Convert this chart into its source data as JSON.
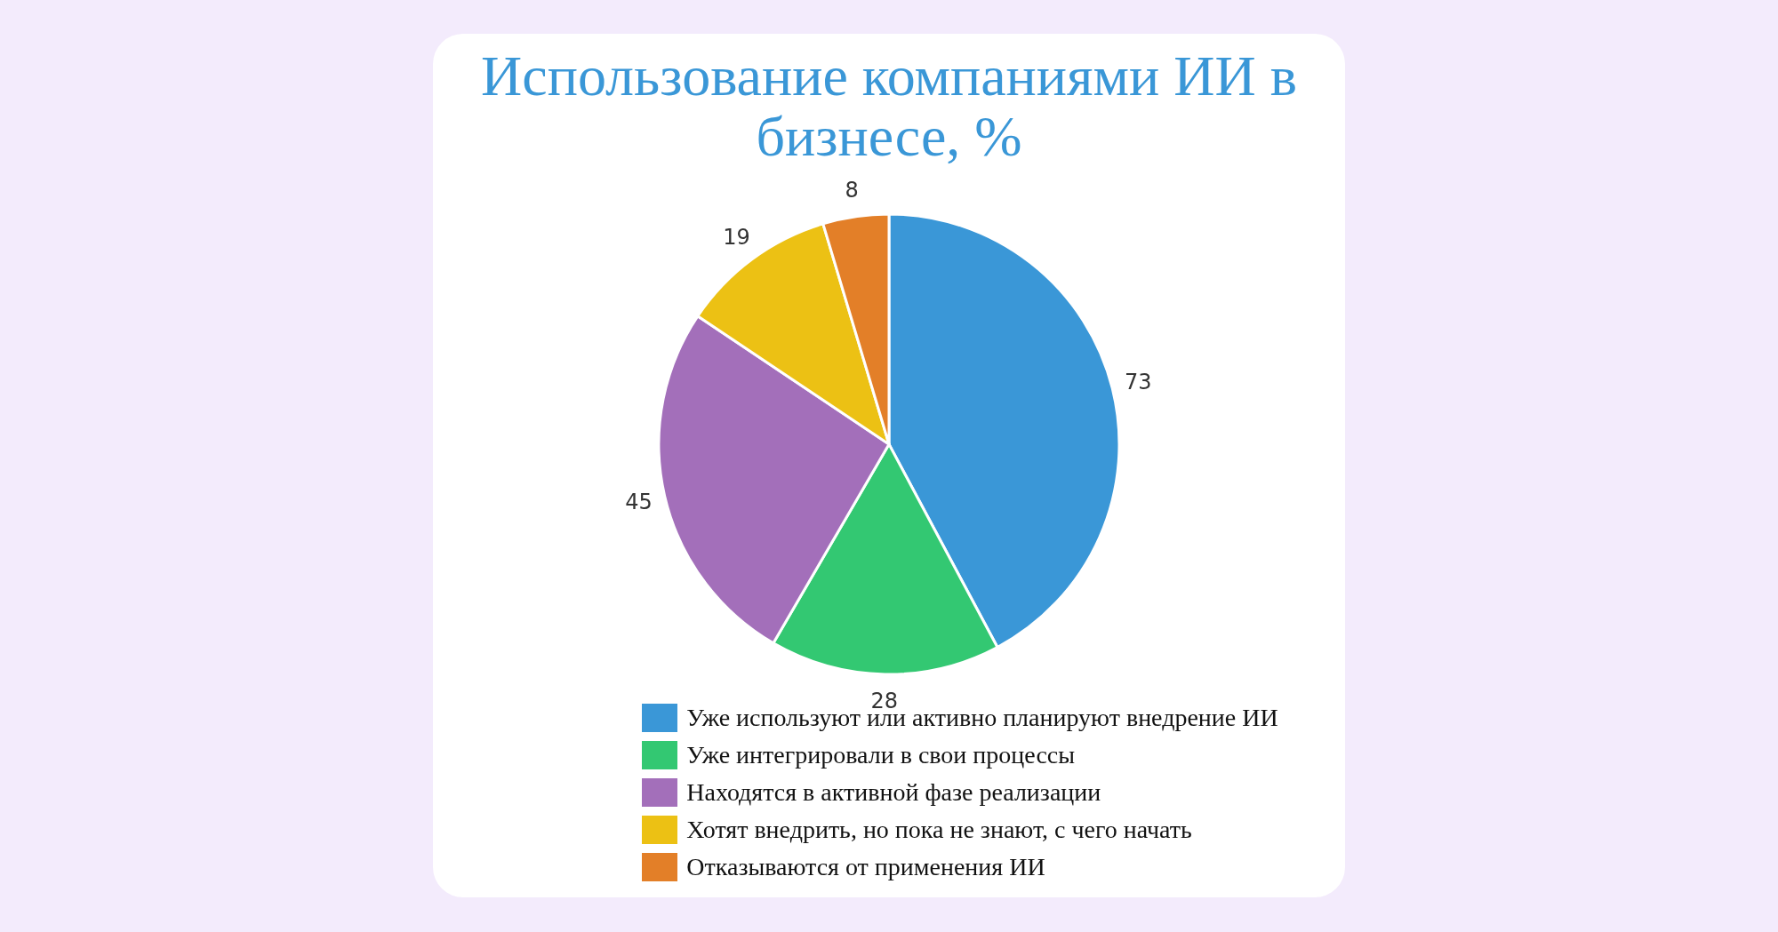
{
  "chart_data": {
    "type": "pie",
    "title": "Использование компаниями ИИ в бизнесе, %",
    "categories": [
      "Уже используют или активно планируют внедрение ИИ",
      "Уже интегрировали в свои процессы",
      "Находятся в активной фазе реализации",
      "Хотят внедрить, но пока не знают, с чего начать",
      "Отказываются от применения ИИ"
    ],
    "values": [
      73,
      28,
      45,
      19,
      8
    ],
    "colors": [
      "#3a97d7",
      "#33c872",
      "#a36fba",
      "#ecc114",
      "#e37f28"
    ],
    "data_labels": true,
    "legend": "bottom"
  }
}
